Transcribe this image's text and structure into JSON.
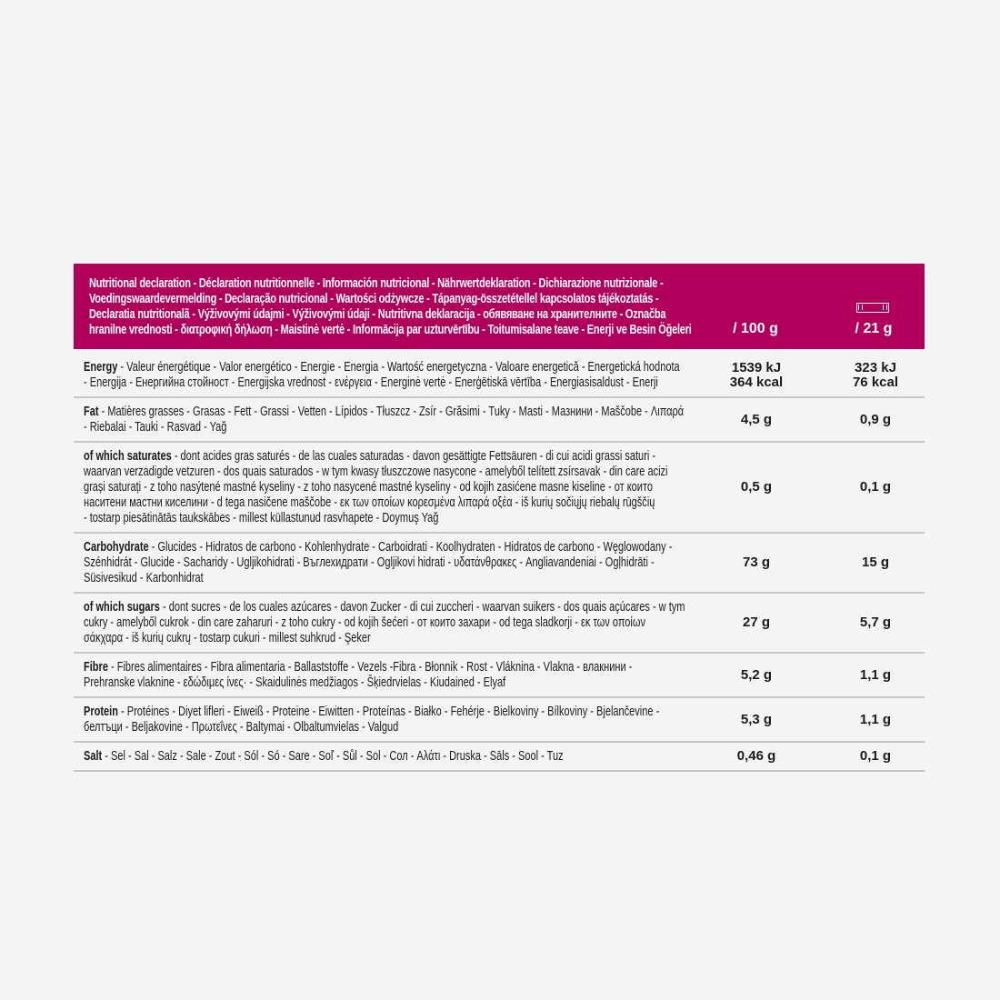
{
  "header": {
    "title_lines": [
      "Nutritional declaration - Déclaration nutritionnelle - Información nutricional - Nährwertdeklaration - Dichiarazione nutrizionale -",
      "Voedingswaardevermelding - Declaração nutricional - Wartości odżywcze - Tápanyag-összetétellel kapcsolatos tájékoztatás -",
      "Declaratia nutritionalã - Výživovými údajmi - Výživovými údaji - Nutritivna deklaracija - обявяване на хранителните - Označba",
      "hranilne vrednosti - διατροφική δήλωση - Maistinė vertė - Informācija par uzturvērtību - Toitumisalane teave - Enerji ve Besin Öğeleri"
    ],
    "col_per100": "/ 100 g",
    "col_serving": "/ 21 g",
    "serving_icon": "bar-icon",
    "accent_color": "#b1005b"
  },
  "rows": [
    {
      "label": "Energy",
      "lines": [
        " - Valeur énergétique - Valor energético - Energie - Energia - Wartość energetyczna - Valoare energetică - Energetická hodnota",
        "- Energija - Енергийна стойност - Energijska vrednost - ενέργεια - Energinė vertė - Enerģētiskā vērtība - Energiasisaldust - Enerji"
      ],
      "per100": [
        "1539 kJ",
        "364 kcal"
      ],
      "serving": [
        "323 kJ",
        "76 kcal"
      ]
    },
    {
      "label": "Fat",
      "lines": [
        " - Matières grasses - Grasas - Fett - Grassi - Vetten - Lípidos - Tłuszcz - Zsír - Grăsimi - Tuky - Masti - Мазнини - Maščobe - Λιπαρά",
        "- Riebalai - Tauki - Rasvad - Yağ"
      ],
      "per100": [
        "4,5 g"
      ],
      "serving": [
        "0,9 g"
      ]
    },
    {
      "label": "of which saturates",
      "lines": [
        " - dont acides gras saturés - de las cuales saturadas - davon gesättigte Fettsäuren - di cui acidi grassi saturi -",
        "waarvan verzadigde vetzuren - dos quais saturados - w tym kwasy tłuszczowe nasycone - amelyből telített zsírsavak - din care acizi",
        "grași saturați - z toho nasýtené mastné kyseliny - z toho nasycené mastné kyseliny - od kojih zasićene masne kiseline - от които",
        "наситени мастни киселини - d tega nasičene maščobe - εκ των οποίων κορεσμένα λιπαρά οξέα - iš kurių sočiųjų riebalų rūgščių",
        "- tostarp piesātinātās taukskābes - millest küllastunud rasvhapete - Doymuş Yağ"
      ],
      "per100": [
        "0,5 g"
      ],
      "serving": [
        "0,1 g"
      ]
    },
    {
      "label": "Carbohydrate",
      "lines": [
        " - Glucides - Hidratos de carbono - Kohlenhydrate - Carboidrati - Koolhydraten - Hidratos de carbono - Węglowodany -",
        "Szénhidrát - Glucide - Sacharidy - Ugljikohidrati - Въглехидрати - Ogljikovi hidrati - υδατάνθρακες - Angliavandeniai - Ogļhidrāti -",
        "Süsivesikud - Karbonhidrat"
      ],
      "per100": [
        "73 g"
      ],
      "serving": [
        "15 g"
      ]
    },
    {
      "label": "of which sugars",
      "lines": [
        " - dont sucres - de los cuales azúcares - davon Zucker - di cui zuccheri - waarvan suikers - dos quais açúcares - w tym",
        "cukry - amelyből cukrok - din care zaharuri - z toho cukry - od kojih šećeri - от които захари - od tega sladkorji - εκ των οποίων",
        "σάκχαρα - iš kurių cukrų - tostarp cukuri - millest suhkrud - Şeker"
      ],
      "per100": [
        "27 g"
      ],
      "serving": [
        "5,7 g"
      ]
    },
    {
      "label": "Fibre",
      "lines": [
        " - Fibres alimentaires - Fibra alimentaria - Ballaststoffe - Vezels -Fibra - Błonnik - Rost - Vláknina - Vlakna - влакнини -",
        "Prehranske vlaknine - εδώδιμες ίνες· - Skaidulinės medžiagos - Šķiedrvielas - Kiudained - Elyaf"
      ],
      "per100": [
        "5,2 g"
      ],
      "serving": [
        "1,1 g"
      ]
    },
    {
      "label": "Protein",
      "lines": [
        " - Protéines - Diyet lifleri - Eiweiß - Proteine - Eiwitten - Proteínas - Białko - Fehérje - Bielkoviny - Bílkoviny - Bjelančevine -",
        "белтъци - Beljakovine - Πρωτεΐνες - Baltymai - Olbaltumvielas - Valgud"
      ],
      "per100": [
        "5,3 g"
      ],
      "serving": [
        "1,1 g"
      ]
    },
    {
      "label": "Salt",
      "lines": [
        " - Sel - Sal - Salz - Sale - Zout - Sól - Só - Sare - Soľ - Sůl - Sol - Сол - Αλάτι - Druska - Sāls - Sool - Tuz"
      ],
      "per100": [
        "0,46 g"
      ],
      "serving": [
        "0,1 g"
      ]
    }
  ]
}
